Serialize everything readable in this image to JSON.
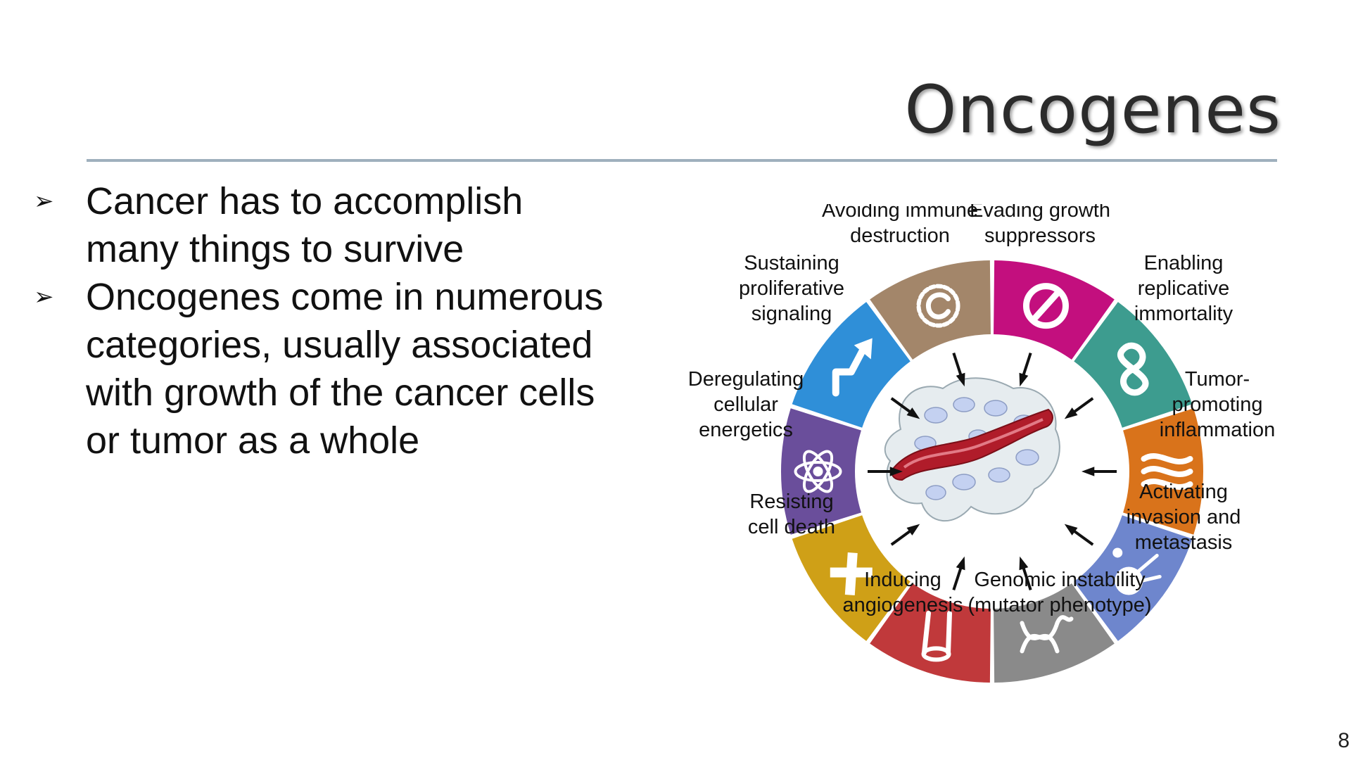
{
  "title": "Oncogenes",
  "bullets": [
    {
      "marker": "➢",
      "text": "Cancer has to accomplish many things to survive"
    },
    {
      "marker": "➢",
      "text": "Oncogenes come in numerous categories, usually associated with growth of the cancer cells or tumor as a whole"
    }
  ],
  "slide_number": "8",
  "hallmarks": [
    {
      "lines": [
        "Evading growth",
        "suppressors"
      ],
      "color": "#c30f7e",
      "icon": "prohibition-icon"
    },
    {
      "lines": [
        "Enabling",
        "replicative",
        "immortality"
      ],
      "color": "#3d9c8f",
      "icon": "infinity-icon"
    },
    {
      "lines": [
        "Tumor-",
        "promoting",
        "inflammation"
      ],
      "color": "#d9731b",
      "icon": "flame-icon"
    },
    {
      "lines": [
        "Activating",
        "invasion and",
        "metastasis"
      ],
      "color": "#6e86cd",
      "icon": "metastasis-cell-icon"
    },
    {
      "lines": [
        "Genomic instability",
        "(mutator phenotype)"
      ],
      "color": "#8a8a8a",
      "icon": "dna-icon"
    },
    {
      "lines": [
        "Inducing",
        "angiogenesis"
      ],
      "color": "#c0393b",
      "icon": "vessel-icon"
    },
    {
      "lines": [
        "Resisting",
        "cell death"
      ],
      "color": "#cfa017",
      "icon": "cross-icon"
    },
    {
      "lines": [
        "Deregulating",
        "cellular",
        "energetics"
      ],
      "color": "#6a4e9b",
      "icon": "atom-icon"
    },
    {
      "lines": [
        "Sustaining",
        "proliferative",
        "signaling"
      ],
      "color": "#2f8fd8",
      "icon": "signal-arrow-icon"
    },
    {
      "lines": [
        "Avoiding immune",
        "destruction"
      ],
      "color": "#a3866a",
      "icon": "immune-cell-icon"
    }
  ]
}
